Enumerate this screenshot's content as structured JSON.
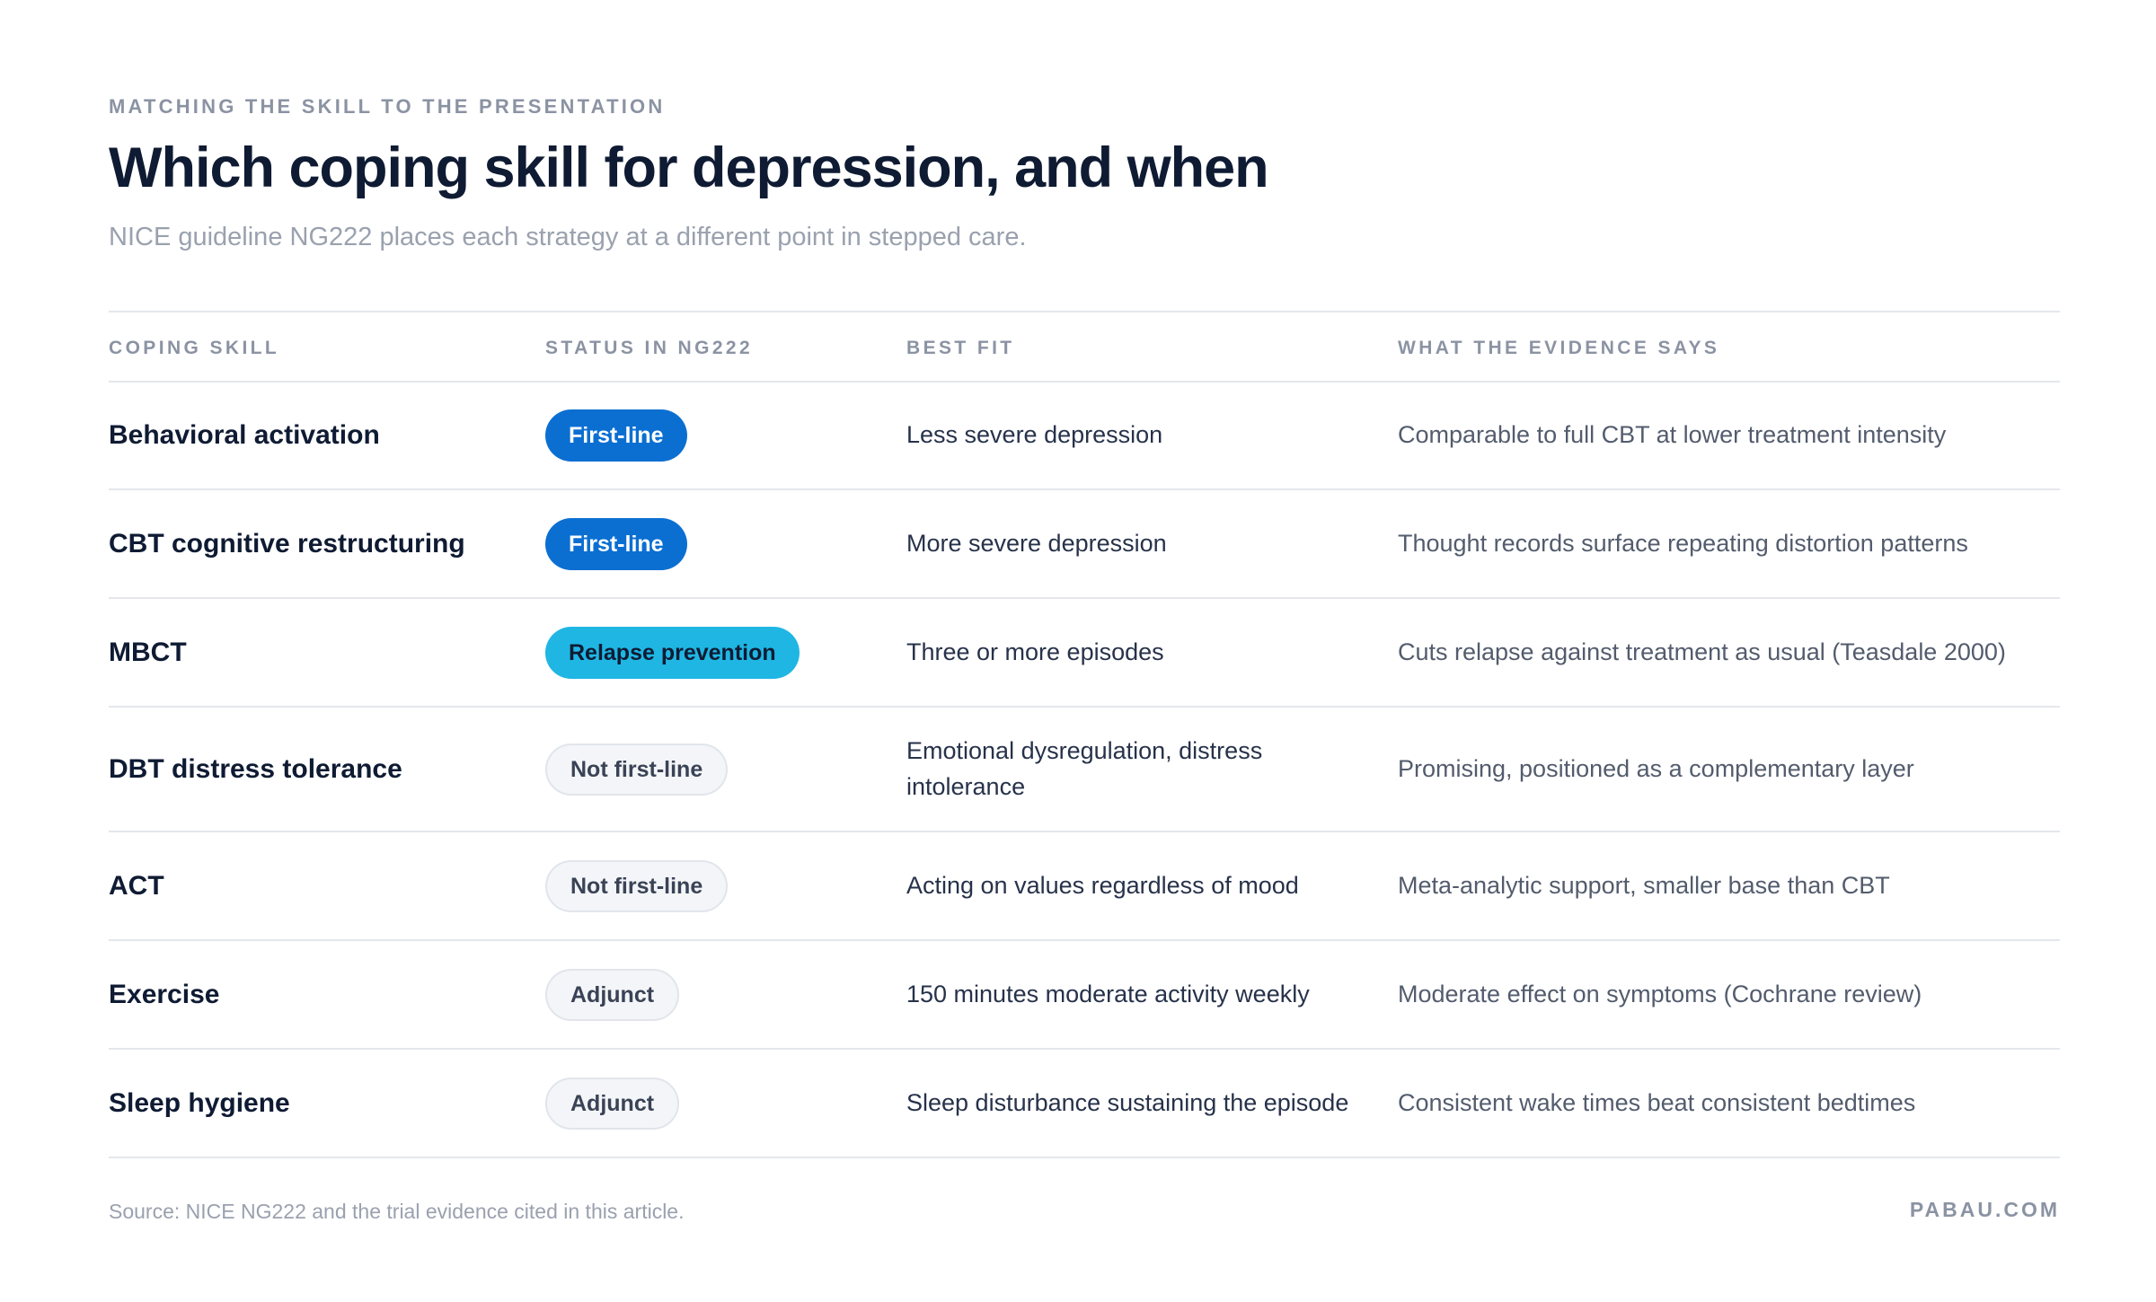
{
  "header": {
    "eyebrow": "MATCHING THE SKILL TO THE PRESENTATION",
    "title": "Which coping skill for depression, and when",
    "subtitle": "NICE guideline NG222 places each strategy at a different point in stepped care."
  },
  "table": {
    "columns": [
      "COPING SKILL",
      "STATUS IN NG222",
      "BEST FIT",
      "WHAT THE EVIDENCE SAYS"
    ],
    "rows": [
      {
        "skill": "Behavioral activation",
        "status": "First-line",
        "status_kind": "first",
        "best_fit": "Less severe depression",
        "evidence": "Comparable to full CBT at lower treatment intensity"
      },
      {
        "skill": "CBT cognitive restructuring",
        "status": "First-line",
        "status_kind": "first",
        "best_fit": "More severe depression",
        "evidence": "Thought records surface repeating distortion patterns"
      },
      {
        "skill": "MBCT",
        "status": "Relapse prevention",
        "status_kind": "relapse",
        "best_fit": "Three or more episodes",
        "evidence": "Cuts relapse against treatment as usual (Teasdale 2000)"
      },
      {
        "skill": "DBT distress tolerance",
        "status": "Not first-line",
        "status_kind": "neutral",
        "best_fit": "Emotional dysregulation, distress intolerance",
        "evidence": "Promising, positioned as a complementary layer"
      },
      {
        "skill": "ACT",
        "status": "Not first-line",
        "status_kind": "neutral",
        "best_fit": "Acting on values regardless of mood",
        "evidence": "Meta-analytic support, smaller base than CBT"
      },
      {
        "skill": "Exercise",
        "status": "Adjunct",
        "status_kind": "neutral",
        "best_fit": "150 minutes moderate activity weekly",
        "evidence": "Moderate effect on symptoms (Cochrane review)"
      },
      {
        "skill": "Sleep hygiene",
        "status": "Adjunct",
        "status_kind": "neutral",
        "best_fit": "Sleep disturbance sustaining the episode",
        "evidence": "Consistent wake times beat consistent bedtimes"
      }
    ]
  },
  "footer": {
    "source": "Source: NICE NG222 and the trial evidence cited in this article.",
    "brand": "PABAU.COM"
  },
  "colors": {
    "first_line_badge": "#0b6fd2",
    "relapse_badge": "#1fb6e3",
    "neutral_badge": "#f3f5f8",
    "title": "#0f1b33",
    "muted": "#8b93a3"
  }
}
